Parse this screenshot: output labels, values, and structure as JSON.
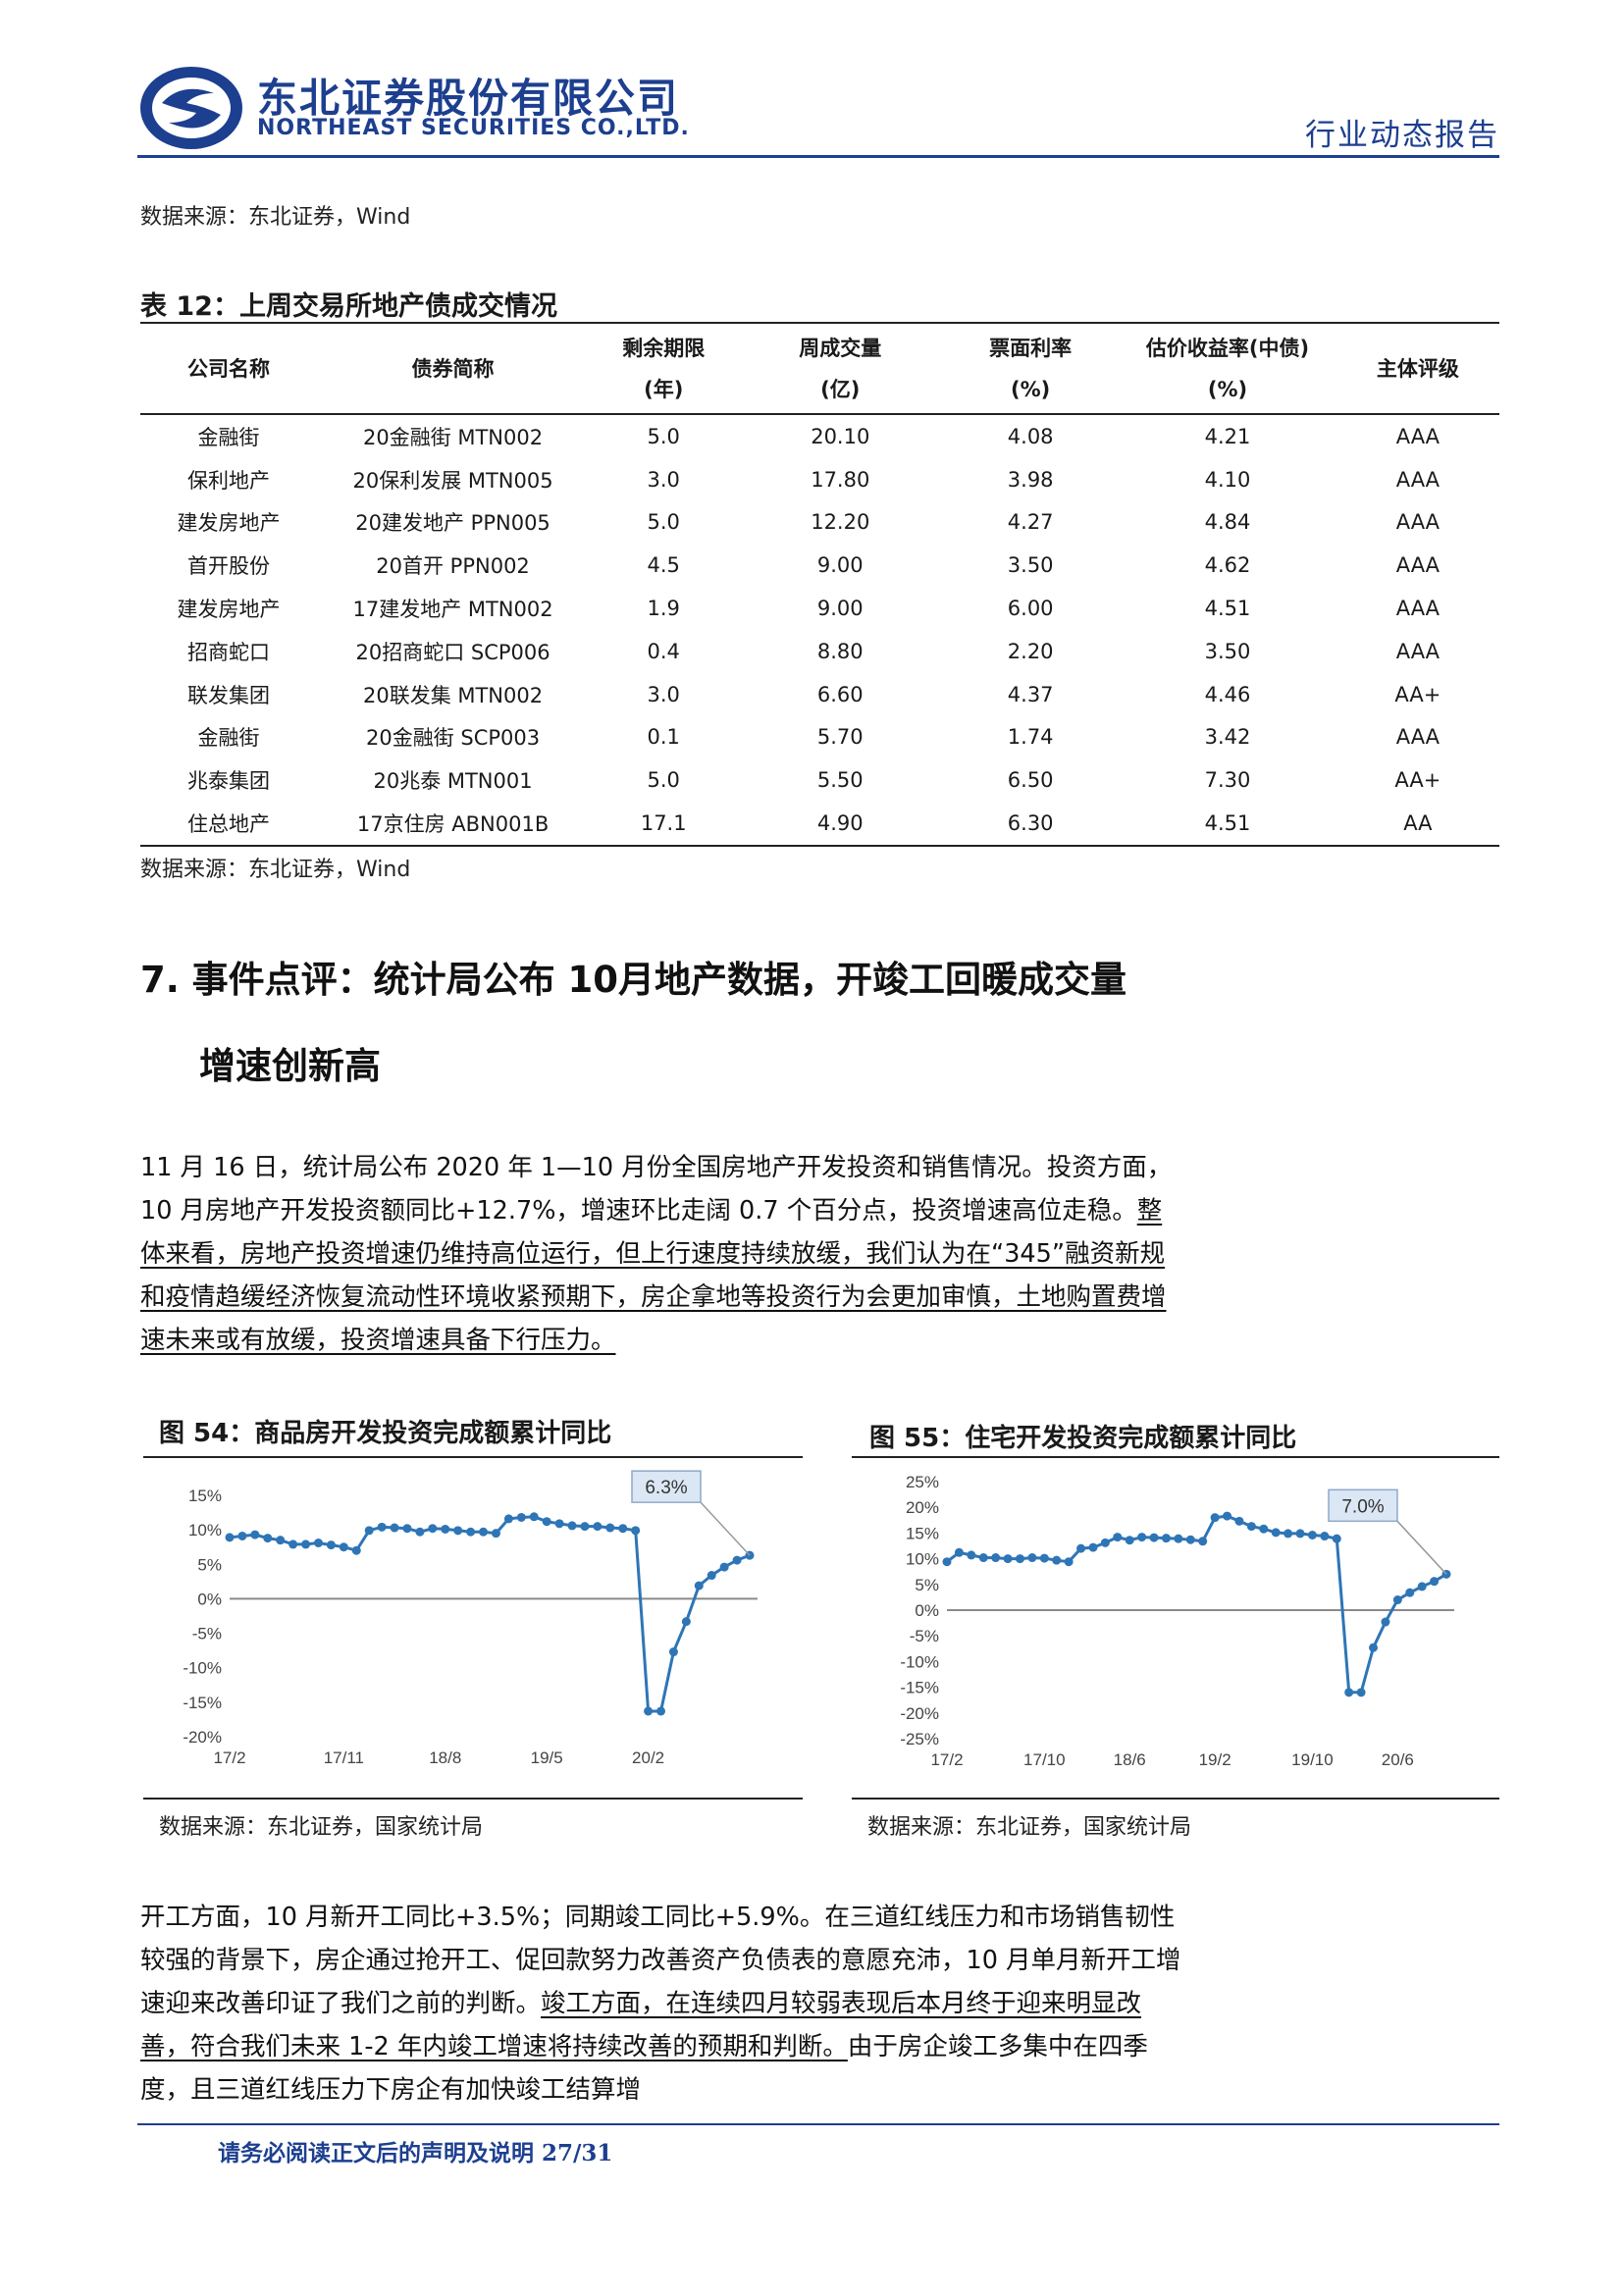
{
  "header": {
    "company_cn": "东北证券股份有限公司",
    "company_en": "NORTHEAST SECURITIES CO.,LTD.",
    "report_type": "行业动态报告",
    "brand_color": "#1d3f8f"
  },
  "source_top": "数据来源：东北证券，Wind",
  "table": {
    "caption": "表 12：上周交易所地产债成交情况",
    "headers": [
      {
        "l1": "公司名称",
        "l2": ""
      },
      {
        "l1": "债券简称",
        "l2": ""
      },
      {
        "l1": "剩余期限",
        "l2": "(年)"
      },
      {
        "l1": "周成交量",
        "l2": "(亿)"
      },
      {
        "l1": "票面利率",
        "l2": "(%)"
      },
      {
        "l1": "估价收益率(中债)",
        "l2": "(%)"
      },
      {
        "l1": "主体评级",
        "l2": ""
      }
    ],
    "rows": [
      [
        "金融街",
        "20金融街 MTN002",
        "5.0",
        "20.10",
        "4.08",
        "4.21",
        "AAA"
      ],
      [
        "保利地产",
        "20保利发展 MTN005",
        "3.0",
        "17.80",
        "3.98",
        "4.10",
        "AAA"
      ],
      [
        "建发房地产",
        "20建发地产 PPN005",
        "5.0",
        "12.20",
        "4.27",
        "4.84",
        "AAA"
      ],
      [
        "首开股份",
        "20首开 PPN002",
        "4.5",
        "9.00",
        "3.50",
        "4.62",
        "AAA"
      ],
      [
        "建发房地产",
        "17建发地产 MTN002",
        "1.9",
        "9.00",
        "6.00",
        "4.51",
        "AAA"
      ],
      [
        "招商蛇口",
        "20招商蛇口 SCP006",
        "0.4",
        "8.80",
        "2.20",
        "3.50",
        "AAA"
      ],
      [
        "联发集团",
        "20联发集 MTN002",
        "3.0",
        "6.60",
        "4.37",
        "4.46",
        "AA+"
      ],
      [
        "金融街",
        "20金融街 SCP003",
        "0.1",
        "5.70",
        "1.74",
        "3.42",
        "AAA"
      ],
      [
        "兆泰集团",
        "20兆泰 MTN001",
        "5.0",
        "5.50",
        "6.50",
        "7.30",
        "AA+"
      ],
      [
        "住总地产",
        "17京住房 ABN001B",
        "17.1",
        "4.90",
        "6.30",
        "4.51",
        "AA"
      ]
    ],
    "source": "数据来源：东北证券，Wind"
  },
  "section": {
    "title_line1": "7. 事件点评：统计局公布 10月地产数据，开竣工回暖成交量",
    "title_line2": "增速创新高"
  },
  "para1": {
    "plain": "11 月 16 日，统计局公布 2020 年 1—10 月份全国房地产开发投资和销售情况。投资方面，10 月房地产开发投资额同比+12.7%，增速环比走阔 0.7 个百分点，投资增速高位走稳。",
    "underlined": "整体来看，房地产投资增速仍维持高位运行，但上行速度持续放缓，我们认为在“345”融资新规和疫情趋缓经济恢复流动性环境收紧预期下，房企拿地等投资行为会更加审慎，土地购置费增速未来或有放缓，投资增速具备下行压力。"
  },
  "para2": {
    "plain": "开工方面，10 月新开工同比+3.5%；同期竣工同比+5.9%。在三道红线压力和市场销售韧性较强的背景下，房企通过抢开工、促回款努力改善资产负债表的意愿充沛，10 月单月新开工增速迎来改善印证了我们之前的判断。",
    "underlined": "竣工方面，在连续四月较弱表现后本月终于迎来明显改善，符合我们未来 1-2 年内竣工增速将持续改善的预期和判断。",
    "tail": "由于房企竣工多集中在四季度，且三道红线压力下房企有加快竣工结算增"
  },
  "figures": {
    "fig54": {
      "title": "图 54：商品房开发投资完成额累计同比",
      "source": "数据来源：东北证券，国家统计局"
    },
    "fig55": {
      "title": "图 55：住宅开发投资完成额累计同比",
      "source": "数据来源：东北证券，国家统计局"
    }
  },
  "chart_data": [
    {
      "type": "line",
      "title": "图 54：商品房开发投资完成额累计同比",
      "x_tick_labels": [
        "17/2",
        "17/11",
        "18/8",
        "19/5",
        "20/2"
      ],
      "y_tick_labels": [
        "15%",
        "10%",
        "5%",
        "0%",
        "-5%",
        "-10%",
        "-15%",
        "-20%"
      ],
      "ylim": [
        -20,
        15
      ],
      "series_color": "#2e75b6",
      "x": [
        "17/2",
        "17/3",
        "17/4",
        "17/5",
        "17/6",
        "17/7",
        "17/8",
        "17/9",
        "17/10",
        "17/11",
        "17/12",
        "18/2",
        "18/3",
        "18/4",
        "18/5",
        "18/6",
        "18/7",
        "18/8",
        "18/9",
        "18/10",
        "18/11",
        "18/12",
        "19/2",
        "19/3",
        "19/4",
        "19/5",
        "19/6",
        "19/7",
        "19/8",
        "19/9",
        "19/10",
        "19/11",
        "19/12",
        "20/2",
        "20/3",
        "20/4",
        "20/5",
        "20/6",
        "20/7",
        "20/8",
        "20/9",
        "20/10"
      ],
      "values": [
        8.9,
        9.1,
        9.3,
        8.8,
        8.5,
        7.9,
        7.9,
        8.1,
        7.8,
        7.5,
        7.0,
        9.9,
        10.4,
        10.3,
        10.2,
        9.7,
        10.2,
        10.1,
        9.9,
        9.7,
        9.7,
        9.5,
        11.6,
        11.8,
        11.9,
        11.2,
        10.9,
        10.6,
        10.5,
        10.5,
        10.3,
        10.2,
        9.9,
        -16.3,
        -16.3,
        -7.7,
        -3.3,
        1.9,
        3.4,
        4.6,
        5.6,
        6.3
      ],
      "annotation": "6.3%"
    },
    {
      "type": "line",
      "title": "图 55：住宅开发投资完成额累计同比",
      "x_tick_labels": [
        "17/2",
        "17/10",
        "18/6",
        "19/2",
        "19/10",
        "20/6"
      ],
      "y_tick_labels": [
        "25%",
        "20%",
        "15%",
        "10%",
        "5%",
        "0%",
        "-5%",
        "-10%",
        "-15%",
        "-20%",
        "-25%"
      ],
      "ylim": [
        -25,
        25
      ],
      "series_color": "#2e75b6",
      "x": [
        "17/2",
        "17/3",
        "17/4",
        "17/5",
        "17/6",
        "17/7",
        "17/8",
        "17/9",
        "17/10",
        "17/11",
        "17/12",
        "18/2",
        "18/3",
        "18/4",
        "18/5",
        "18/6",
        "18/7",
        "18/8",
        "18/9",
        "18/10",
        "18/11",
        "18/12",
        "19/2",
        "19/3",
        "19/4",
        "19/5",
        "19/6",
        "19/7",
        "19/8",
        "19/9",
        "19/10",
        "19/11",
        "19/12",
        "20/2",
        "20/3",
        "20/4",
        "20/5",
        "20/6",
        "20/7",
        "20/8",
        "20/9",
        "20/10"
      ],
      "values": [
        9.4,
        11.2,
        10.7,
        10.2,
        10.2,
        10.0,
        10.0,
        10.2,
        10.1,
        9.7,
        9.4,
        12.0,
        12.2,
        13.1,
        14.2,
        13.6,
        14.2,
        14.1,
        14.0,
        13.9,
        13.7,
        13.4,
        18.0,
        18.3,
        17.3,
        16.3,
        15.8,
        15.1,
        14.9,
        14.9,
        14.6,
        14.4,
        13.9,
        -16.0,
        -16.0,
        -7.3,
        -2.3,
        2.0,
        3.4,
        4.6,
        5.6,
        7.0
      ],
      "annotation": "7.0%"
    }
  ],
  "footer": {
    "text": "请务必阅读正文后的声明及说明 27/31"
  }
}
